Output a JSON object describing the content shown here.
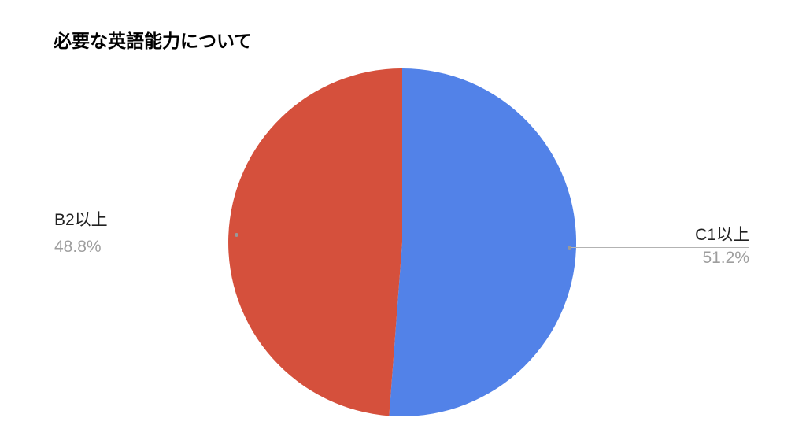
{
  "chart_data": {
    "type": "pie",
    "title": "必要な英語能力について",
    "start_angle_deg": 0,
    "direction": "clockwise",
    "legend_position": "callout-labels",
    "background": "#ffffff",
    "categories": [
      "C1以上",
      "B2以上"
    ],
    "values": [
      51.2,
      48.8
    ],
    "slices": [
      {
        "label": "C1以上",
        "value": 51.2,
        "percent_label": "51.2%",
        "color": "#5282e8",
        "callout_side": "right"
      },
      {
        "label": "B2以上",
        "value": 48.8,
        "percent_label": "48.8%",
        "color": "#d5503c",
        "callout_side": "left"
      }
    ]
  },
  "styles": {
    "title_color": "#000000",
    "label_color": "#212121",
    "percent_color": "#9e9e9e",
    "leader_line_color": "#b3b3b3",
    "leader_dot_color": "#999999",
    "background": "#ffffff"
  }
}
